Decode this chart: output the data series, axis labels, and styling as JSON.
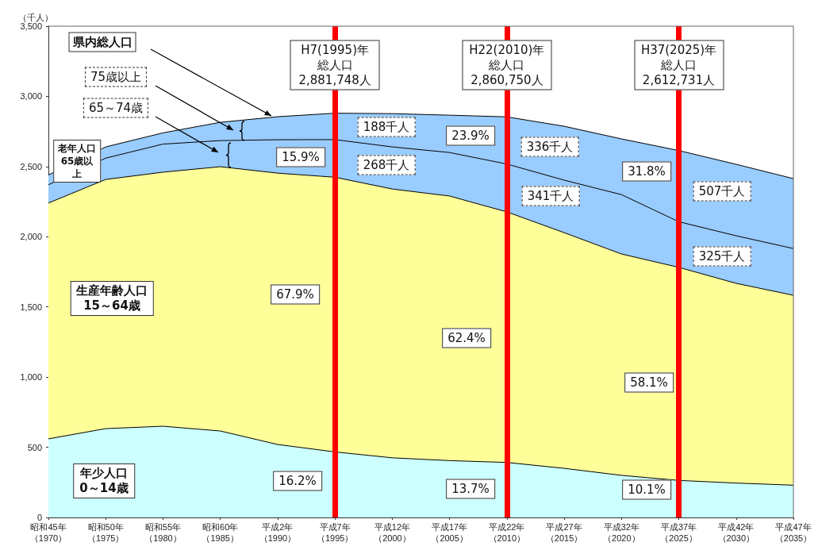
{
  "chart_data": {
    "type": "area",
    "stacked": true,
    "ylabel": "（千人）",
    "categories": [
      "昭和45年（1970）",
      "昭和50年（1975）",
      "昭和55年（1980）",
      "昭和60年（1985）",
      "平成2年（1990）",
      "平成7年（1995）",
      "平成12年（2000）",
      "平成17年（2005）",
      "平成22年（2010）",
      "平成27年（2015）",
      "平成32年（2020）",
      "平成37年（2025）",
      "平成42年（2030）",
      "平成47年（2035）"
    ],
    "series": [
      {
        "name": "年少人口0～14歳",
        "color": "#ccffff",
        "values": [
          560,
          633,
          650,
          616,
          520,
          467,
          425,
          405,
          392,
          350,
          300,
          264,
          245,
          230
        ]
      },
      {
        "name": "生産年齢人口15～64歳",
        "color": "#ffff99",
        "values": [
          1680,
          1775,
          1810,
          1883,
          1933,
          1957,
          1915,
          1885,
          1785,
          1679,
          1577,
          1518,
          1423,
          1353
        ]
      },
      {
        "name": "65～74歳",
        "color": "#99ccff",
        "values": [
          130,
          152,
          200,
          186,
          238,
          268,
          300,
          310,
          341,
          374,
          423,
          325,
          339,
          333
        ]
      },
      {
        "name": "75歳以上",
        "color": "#99ccff",
        "values": [
          70,
          80,
          80,
          130,
          164,
          188,
          237,
          266,
          336,
          384,
          397,
          507,
          509,
          498
        ]
      }
    ],
    "ylim": [
      0,
      3500
    ],
    "yticks": [
      0,
      {
        "value": 500,
        "label": "500"
      },
      {
        "value": 1000,
        "label": "1,000"
      },
      {
        "value": 1500,
        "label": "1,500"
      },
      {
        "value": 2000,
        "label": "2,000"
      },
      {
        "value": 2500,
        "label": "2,500"
      },
      {
        "value": 3000,
        "label": "3,000"
      },
      {
        "value": 3500,
        "label": "3,500"
      }
    ],
    "grid": false,
    "legend": false,
    "marker": "none",
    "line_style": "solid",
    "ref_lines": [
      {
        "axis": "x",
        "value": "平成7年（1995）",
        "label": "H7(1995)年総人口2,881,748人",
        "color": "#ff0000"
      },
      {
        "axis": "x",
        "value": "平成22年（2010）",
        "label": "H22(2010)年総人口2,860,750人",
        "color": "#ff0000"
      },
      {
        "axis": "x",
        "value": "平成37年（2025）",
        "label": "H37(2025)年総人口2,612,731人",
        "color": "#ff0000"
      }
    ],
    "annotations": [
      "県内総人口",
      "老年人口65歳以上",
      "67.9%",
      "16.2%",
      "15.9%",
      "188千人",
      "268千人",
      "23.9%",
      "336千人",
      "341千人",
      "62.4%",
      "13.7%",
      "31.8%",
      "507千人",
      "325千人",
      "58.1%",
      "10.1%"
    ]
  }
}
